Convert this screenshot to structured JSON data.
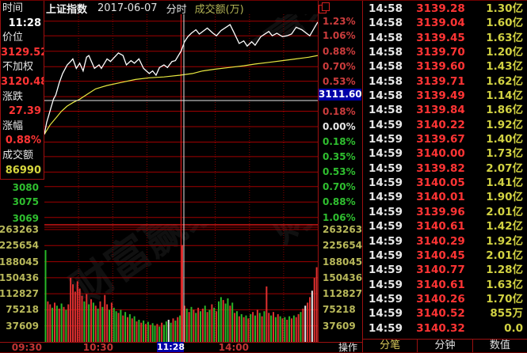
{
  "header": {
    "symbol": "上证指数",
    "date": "2017-06-07",
    "mode": "分时",
    "right_label": "成交额(万)"
  },
  "sidebar": {
    "rows": [
      {
        "kind": "label",
        "text": "时间"
      },
      {
        "kind": "value",
        "text": "11:28",
        "color": "#ffffff"
      },
      {
        "kind": "label",
        "text": "价位"
      },
      {
        "kind": "value",
        "text": "3129.52",
        "color": "#ff3434"
      },
      {
        "kind": "label",
        "text": "不加权"
      },
      {
        "kind": "value",
        "text": "3120.48",
        "color": "#ff3434"
      },
      {
        "kind": "label",
        "text": "涨跌"
      },
      {
        "kind": "value",
        "text": "27.39",
        "color": "#ff3434"
      },
      {
        "kind": "label",
        "text": "涨幅"
      },
      {
        "kind": "value",
        "text": "0.88%",
        "color": "#ff3434"
      },
      {
        "kind": "label",
        "text": "成交额"
      },
      {
        "kind": "value",
        "text": "86990",
        "color": "#d6d63e"
      }
    ]
  },
  "chart_data": {
    "type": "line",
    "title": "上证指数 2017-06-07 分时",
    "prev_close": 3102.13,
    "pct_axis_labels": [
      1.23,
      1.06,
      0.88,
      0.7,
      0.53,
      0.35,
      0.18,
      0.0,
      -0.18,
      -0.35,
      -0.53,
      -0.7,
      -0.88,
      -1.06
    ],
    "left_price_labels": [
      3080,
      3075,
      3069
    ],
    "volume_scale": [
      263263,
      225654,
      188045,
      150436,
      112827,
      75218,
      37609
    ],
    "x_labels": [
      "09:30",
      "10:30",
      "14:00"
    ],
    "session_minutes": 240,
    "crosshair": {
      "time": "11:28",
      "price": "3111.60",
      "price_pct": 0.305,
      "minute": 122.4
    },
    "watermark_text": "财富赢家",
    "series": [
      {
        "name": "price",
        "color": "#ffffff",
        "points": [
          [
            0,
            -0.09
          ],
          [
            2,
            0.05
          ],
          [
            4,
            0.14
          ],
          [
            6,
            0.23
          ],
          [
            8,
            0.32
          ],
          [
            10,
            0.37
          ],
          [
            13,
            0.51
          ],
          [
            16,
            0.62
          ],
          [
            20,
            0.72
          ],
          [
            23,
            0.76
          ],
          [
            25,
            0.79
          ],
          [
            28,
            0.68
          ],
          [
            31,
            0.74
          ],
          [
            34,
            0.65
          ],
          [
            37,
            0.81
          ],
          [
            39,
            0.83
          ],
          [
            44,
            0.68
          ],
          [
            48,
            0.72
          ],
          [
            50,
            0.68
          ],
          [
            55,
            0.79
          ],
          [
            58,
            0.76
          ],
          [
            65,
            0.86
          ],
          [
            69,
            0.83
          ],
          [
            72,
            0.72
          ],
          [
            76,
            0.77
          ],
          [
            79,
            0.74
          ],
          [
            83,
            0.79
          ],
          [
            87,
            0.68
          ],
          [
            92,
            0.62
          ],
          [
            95,
            0.65
          ],
          [
            98,
            0.6
          ],
          [
            101,
            0.69
          ],
          [
            105,
            0.72
          ],
          [
            108,
            0.69
          ],
          [
            112,
            0.76
          ],
          [
            115,
            0.77
          ],
          [
            119,
            0.86
          ],
          [
            120,
            0.88
          ],
          [
            123,
            0.99
          ],
          [
            126,
            1.05
          ],
          [
            129,
            1.09
          ],
          [
            133,
            1.13
          ],
          [
            136,
            1.08
          ],
          [
            143,
            1.15
          ],
          [
            148,
            1.09
          ],
          [
            151,
            1.06
          ],
          [
            155,
            1.12
          ],
          [
            163,
            1.19
          ],
          [
            166,
            1.11
          ],
          [
            171,
            0.97
          ],
          [
            175,
            1.0
          ],
          [
            178,
            0.94
          ],
          [
            182,
            0.99
          ],
          [
            185,
            0.95
          ],
          [
            190,
            1.05
          ],
          [
            197,
            1.11
          ],
          [
            200,
            1.06
          ],
          [
            204,
            1.09
          ],
          [
            209,
            1.05
          ],
          [
            213,
            1.06
          ],
          [
            217,
            1.08
          ],
          [
            221,
            1.16
          ],
          [
            226,
            1.13
          ],
          [
            230,
            1.09
          ],
          [
            233,
            1.06
          ],
          [
            236,
            1.13
          ],
          [
            240,
            1.22
          ]
        ]
      },
      {
        "name": "average",
        "color": "#e8e840",
        "points": [
          [
            0,
            -0.09
          ],
          [
            5,
            0.02
          ],
          [
            10,
            0.1
          ],
          [
            15,
            0.18
          ],
          [
            20,
            0.24
          ],
          [
            25,
            0.28
          ],
          [
            31,
            0.32
          ],
          [
            38,
            0.38
          ],
          [
            45,
            0.44
          ],
          [
            55,
            0.48
          ],
          [
            69,
            0.52
          ],
          [
            80,
            0.55
          ],
          [
            92,
            0.57
          ],
          [
            105,
            0.58
          ],
          [
            119,
            0.6
          ],
          [
            130,
            0.62
          ],
          [
            139,
            0.65
          ],
          [
            150,
            0.67
          ],
          [
            162,
            0.69
          ],
          [
            175,
            0.71
          ],
          [
            185,
            0.73
          ],
          [
            197,
            0.75
          ],
          [
            209,
            0.77
          ],
          [
            221,
            0.79
          ],
          [
            232,
            0.81
          ],
          [
            240,
            0.83
          ]
        ]
      }
    ],
    "volume_bars_thousands": [
      [
        215,
        "g"
      ],
      [
        95,
        "r"
      ],
      [
        88,
        "r"
      ],
      [
        80,
        "g"
      ],
      [
        92,
        "r"
      ],
      [
        85,
        "g"
      ],
      [
        78,
        "r"
      ],
      [
        90,
        "g"
      ],
      [
        82,
        "r"
      ],
      [
        75,
        "g"
      ],
      [
        88,
        "r"
      ],
      [
        150,
        "r"
      ],
      [
        135,
        "r"
      ],
      [
        118,
        "r"
      ],
      [
        142,
        "r"
      ],
      [
        125,
        "r"
      ],
      [
        108,
        "r"
      ],
      [
        95,
        "g"
      ],
      [
        112,
        "r"
      ],
      [
        88,
        "g"
      ],
      [
        100,
        "r"
      ],
      [
        92,
        "g"
      ],
      [
        85,
        "r"
      ],
      [
        78,
        "g"
      ],
      [
        95,
        "r"
      ],
      [
        82,
        "g"
      ],
      [
        110,
        "r"
      ],
      [
        88,
        "r"
      ],
      [
        75,
        "g"
      ],
      [
        92,
        "r"
      ],
      [
        80,
        "g"
      ],
      [
        72,
        "g"
      ],
      [
        68,
        "r"
      ],
      [
        75,
        "g"
      ],
      [
        62,
        "r"
      ],
      [
        70,
        "g"
      ],
      [
        58,
        "r"
      ],
      [
        65,
        "g"
      ],
      [
        55,
        "r"
      ],
      [
        60,
        "g"
      ],
      [
        48,
        "r"
      ],
      [
        52,
        "g"
      ],
      [
        45,
        "r"
      ],
      [
        50,
        "g"
      ],
      [
        42,
        "r"
      ],
      [
        47,
        "g"
      ],
      [
        40,
        "r"
      ],
      [
        44,
        "g"
      ],
      [
        38,
        "g"
      ],
      [
        42,
        "r"
      ],
      [
        36,
        "g"
      ],
      [
        45,
        "r"
      ],
      [
        40,
        "g"
      ],
      [
        48,
        "g"
      ],
      [
        52,
        "w"
      ],
      [
        45,
        "g"
      ],
      [
        55,
        "r"
      ],
      [
        50,
        "g"
      ],
      [
        58,
        "r"
      ],
      [
        62,
        "g"
      ],
      [
        227,
        "r"
      ],
      [
        85,
        "r"
      ],
      [
        78,
        "g"
      ],
      [
        70,
        "r"
      ],
      [
        82,
        "g"
      ],
      [
        75,
        "r"
      ],
      [
        68,
        "g"
      ],
      [
        80,
        "r"
      ],
      [
        72,
        "g"
      ],
      [
        78,
        "r"
      ],
      [
        85,
        "g"
      ],
      [
        70,
        "r"
      ],
      [
        75,
        "g"
      ],
      [
        88,
        "r"
      ],
      [
        80,
        "g"
      ],
      [
        72,
        "r"
      ],
      [
        95,
        "g"
      ],
      [
        105,
        "g"
      ],
      [
        98,
        "r"
      ],
      [
        90,
        "g"
      ],
      [
        102,
        "g"
      ],
      [
        85,
        "r"
      ],
      [
        92,
        "g"
      ],
      [
        68,
        "r"
      ],
      [
        72,
        "g"
      ],
      [
        60,
        "r"
      ],
      [
        65,
        "g"
      ],
      [
        58,
        "r"
      ],
      [
        62,
        "g"
      ],
      [
        55,
        "r"
      ],
      [
        65,
        "g"
      ],
      [
        70,
        "r"
      ],
      [
        62,
        "g"
      ],
      [
        75,
        "r"
      ],
      [
        68,
        "g"
      ],
      [
        60,
        "r"
      ],
      [
        72,
        "g"
      ],
      [
        130,
        "r"
      ],
      [
        68,
        "r"
      ],
      [
        62,
        "g"
      ],
      [
        70,
        "r"
      ],
      [
        58,
        "g"
      ],
      [
        65,
        "r"
      ],
      [
        60,
        "g"
      ],
      [
        55,
        "r"
      ],
      [
        58,
        "g"
      ],
      [
        52,
        "r"
      ],
      [
        60,
        "g"
      ],
      [
        55,
        "r"
      ],
      [
        62,
        "g"
      ],
      [
        58,
        "r"
      ],
      [
        65,
        "r"
      ],
      [
        70,
        "g"
      ],
      [
        78,
        "r"
      ],
      [
        85,
        "w"
      ],
      [
        92,
        "r"
      ],
      [
        105,
        "r"
      ],
      [
        120,
        "w"
      ],
      [
        150,
        "r"
      ],
      [
        175,
        "r"
      ]
    ]
  },
  "bottom": {
    "action_label": "操作"
  },
  "right_panel": {
    "rows": [
      {
        "time": "14:58",
        "price": "3139.28",
        "amount": "1.30亿"
      },
      {
        "time": "14:58",
        "price": "3139.04",
        "amount": "1.60亿"
      },
      {
        "time": "14:58",
        "price": "3139.45",
        "amount": "1.63亿"
      },
      {
        "time": "14:58",
        "price": "3139.70",
        "amount": "1.20亿"
      },
      {
        "time": "14:58",
        "price": "3139.60",
        "amount": "1.43亿"
      },
      {
        "time": "14:58",
        "price": "3139.71",
        "amount": "1.62亿"
      },
      {
        "time": "14:58",
        "price": "3139.49",
        "amount": "1.14亿"
      },
      {
        "time": "14:58",
        "price": "3139.84",
        "amount": "1.86亿"
      },
      {
        "time": "14:59",
        "price": "3140.22",
        "amount": "1.92亿"
      },
      {
        "time": "14:59",
        "price": "3139.67",
        "amount": "1.40亿"
      },
      {
        "time": "14:59",
        "price": "3140.00",
        "amount": "1.73亿"
      },
      {
        "time": "14:59",
        "price": "3139.82",
        "amount": "2.07亿"
      },
      {
        "time": "14:59",
        "price": "3140.05",
        "amount": "1.41亿"
      },
      {
        "time": "14:59",
        "price": "3140.01",
        "amount": "1.90亿"
      },
      {
        "time": "14:59",
        "price": "3139.96",
        "amount": "2.01亿"
      },
      {
        "time": "14:59",
        "price": "3140.61",
        "amount": "1.42亿"
      },
      {
        "time": "14:59",
        "price": "3140.29",
        "amount": "1.92亿"
      },
      {
        "time": "14:59",
        "price": "3140.45",
        "amount": "2.01亿"
      },
      {
        "time": "14:59",
        "price": "3140.77",
        "amount": "1.28亿"
      },
      {
        "time": "14:59",
        "price": "3140.61",
        "amount": "1.63亿"
      },
      {
        "time": "14:59",
        "price": "3140.26",
        "amount": "1.70亿"
      },
      {
        "time": "14:59",
        "price": "3140.52",
        "amount": "855万"
      },
      {
        "time": "14:59",
        "price": "3140.32",
        "amount": "0.0"
      }
    ],
    "tabs": [
      {
        "label": "分笔",
        "active": true
      },
      {
        "label": "分钟",
        "active": false
      },
      {
        "label": "数值",
        "active": false
      }
    ]
  },
  "colors": {
    "grid": "#a00000",
    "grid_bright": "#d01414",
    "up": "#e03030",
    "down": "#28b828",
    "pct_up": "#cc3c3c",
    "pct_down": "#2fbf2f",
    "pct_zero": "#e8e8e8",
    "volume_label": "#b8b85a",
    "highlight_box": "#0000a8"
  }
}
